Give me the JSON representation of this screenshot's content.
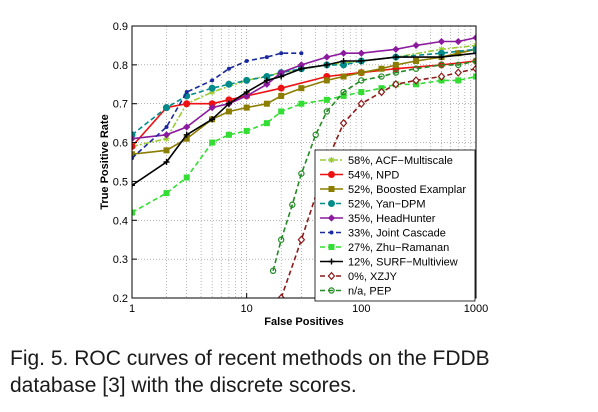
{
  "caption": {
    "line1": "Fig. 5.  ROC curves of recent methods on the FDDB",
    "line2": "database [3] with the discrete scores."
  },
  "chart_data": {
    "type": "line",
    "xlabel": "False Positives",
    "ylabel": "True Positive Rate",
    "xscale": "log",
    "xlim": [
      1,
      1000
    ],
    "ylim": [
      0.2,
      0.9
    ],
    "xticks": [
      1,
      10,
      100,
      1000
    ],
    "xtick_labels": [
      "1",
      "10",
      "100",
      "1000"
    ],
    "yticks": [
      0.2,
      0.3,
      0.4,
      0.5,
      0.6,
      0.7,
      0.8,
      0.9
    ],
    "ytick_labels": [
      "0.2",
      "0.3",
      "0.4",
      "0.5",
      "0.6",
      "0.7",
      "0.8",
      "0.9"
    ],
    "grid": true,
    "legend_position": "lower-right",
    "series": [
      {
        "name": "58%, ACF−Multiscale",
        "color": "#99cc33",
        "dash": "dashdot",
        "marker": "star",
        "x": [
          1,
          2,
          3,
          5,
          10,
          20,
          50,
          100,
          200,
          500,
          1000
        ],
        "y": [
          0.59,
          0.61,
          0.7,
          0.73,
          0.76,
          0.78,
          0.8,
          0.81,
          0.82,
          0.84,
          0.85
        ]
      },
      {
        "name": "54%, NPD",
        "color": "#ee1111",
        "dash": "solid",
        "marker": "circle",
        "x": [
          1,
          2,
          3,
          5,
          7,
          10,
          20,
          50,
          100,
          200,
          500,
          1000
        ],
        "y": [
          0.59,
          0.69,
          0.7,
          0.7,
          0.71,
          0.72,
          0.74,
          0.77,
          0.78,
          0.79,
          0.8,
          0.81
        ]
      },
      {
        "name": "52%, Boosted Examplar",
        "color": "#8b7d00",
        "dash": "solid",
        "marker": "square",
        "x": [
          1,
          2,
          3,
          5,
          7,
          10,
          15,
          20,
          30,
          50,
          70,
          100,
          150,
          200,
          300,
          500,
          700,
          1000
        ],
        "y": [
          0.57,
          0.58,
          0.61,
          0.66,
          0.68,
          0.69,
          0.7,
          0.72,
          0.74,
          0.76,
          0.77,
          0.78,
          0.79,
          0.8,
          0.81,
          0.82,
          0.83,
          0.84
        ]
      },
      {
        "name": "52%, Yan−DPM",
        "color": "#008b8b",
        "dash": "dashed",
        "marker": "circle",
        "x": [
          1,
          2,
          3,
          5,
          7,
          10,
          15,
          20,
          30,
          50,
          70,
          100,
          200,
          500,
          1000
        ],
        "y": [
          0.62,
          0.69,
          0.72,
          0.74,
          0.75,
          0.76,
          0.77,
          0.78,
          0.79,
          0.8,
          0.8,
          0.81,
          0.82,
          0.83,
          0.84
        ]
      },
      {
        "name": "35%, HeadHunter",
        "color": "#8b1a9e",
        "dash": "solid",
        "marker": "diamond",
        "x": [
          1,
          2,
          3,
          5,
          7,
          10,
          15,
          20,
          30,
          50,
          70,
          100,
          200,
          300,
          500,
          700,
          1000
        ],
        "y": [
          0.61,
          0.62,
          0.64,
          0.69,
          0.7,
          0.72,
          0.75,
          0.78,
          0.8,
          0.82,
          0.83,
          0.83,
          0.84,
          0.85,
          0.86,
          0.86,
          0.87
        ]
      },
      {
        "name": "33%, Joint Cascade",
        "color": "#1a2a9e",
        "dash": "dashed",
        "marker": "dot",
        "x": [
          1,
          2,
          3,
          5,
          7,
          10,
          15,
          20,
          30
        ],
        "y": [
          0.56,
          0.64,
          0.73,
          0.76,
          0.79,
          0.81,
          0.82,
          0.83,
          0.83
        ]
      },
      {
        "name": "27%, Zhu−Ramanan",
        "color": "#33dd33",
        "dash": "dashed",
        "marker": "square",
        "x": [
          1,
          2,
          3,
          5,
          7,
          10,
          15,
          20,
          30,
          50,
          70,
          100,
          150,
          200,
          300,
          500,
          700,
          1000
        ],
        "y": [
          0.42,
          0.47,
          0.51,
          0.6,
          0.62,
          0.63,
          0.65,
          0.68,
          0.7,
          0.71,
          0.72,
          0.73,
          0.74,
          0.75,
          0.75,
          0.76,
          0.76,
          0.77
        ]
      },
      {
        "name": "12%, SURF−Multiview",
        "color": "#000000",
        "dash": "solid",
        "marker": "plus",
        "x": [
          1,
          2,
          3,
          5,
          7,
          10,
          15,
          20,
          30,
          50,
          70,
          100,
          200,
          500,
          1000
        ],
        "y": [
          0.49,
          0.55,
          0.62,
          0.66,
          0.7,
          0.73,
          0.76,
          0.77,
          0.79,
          0.8,
          0.81,
          0.81,
          0.82,
          0.82,
          0.83
        ]
      },
      {
        "name": "0%, XZJY",
        "color": "#8b1a1a",
        "dash": "dashed",
        "marker": "diamond-open",
        "x": [
          20,
          30,
          50,
          70,
          100,
          150,
          200,
          300,
          500,
          700,
          1000
        ],
        "y": [
          0.2,
          0.35,
          0.55,
          0.65,
          0.7,
          0.73,
          0.75,
          0.76,
          0.77,
          0.78,
          0.79
        ]
      },
      {
        "name": "n/a, PEP",
        "color": "#228b22",
        "dash": "dashed",
        "marker": "circle-open",
        "x": [
          17,
          20,
          25,
          30,
          40,
          50,
          70,
          100,
          150,
          200,
          300,
          500,
          700,
          1000
        ],
        "y": [
          0.27,
          0.35,
          0.44,
          0.52,
          0.62,
          0.68,
          0.73,
          0.76,
          0.77,
          0.78,
          0.79,
          0.8,
          0.8,
          0.81
        ]
      }
    ]
  }
}
